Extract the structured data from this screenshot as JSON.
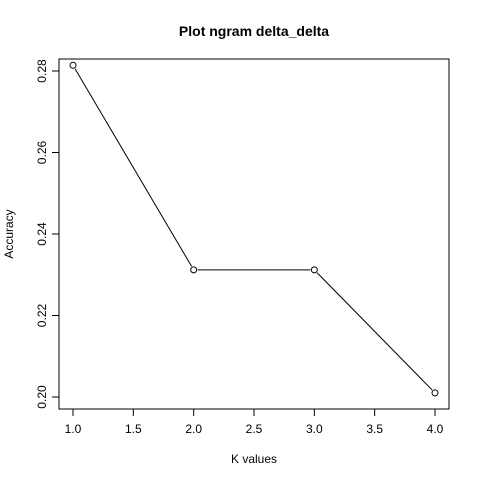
{
  "chart_data": {
    "type": "line",
    "title": "Plot ngram delta_delta",
    "xlabel": "K values",
    "ylabel": "Accuracy",
    "x": [
      1.0,
      2.0,
      3.0,
      4.0
    ],
    "y": [
      0.2814,
      0.2312,
      0.2312,
      0.201
    ],
    "xlim": [
      1.0,
      4.0
    ],
    "ylim": [
      0.2,
      0.28
    ],
    "x_ticks": [
      1.0,
      1.5,
      2.0,
      2.5,
      3.0,
      3.5,
      4.0
    ],
    "x_tick_labels": [
      "1.0",
      "1.5",
      "2.0",
      "2.5",
      "3.0",
      "3.5",
      "4.0"
    ],
    "y_ticks": [
      0.2,
      0.22,
      0.24,
      0.26,
      0.28
    ],
    "y_tick_labels": [
      "0.20",
      "0.22",
      "0.24",
      "0.26",
      "0.28"
    ],
    "grid": false,
    "line_color": "#000000",
    "marker": "open-circle"
  }
}
